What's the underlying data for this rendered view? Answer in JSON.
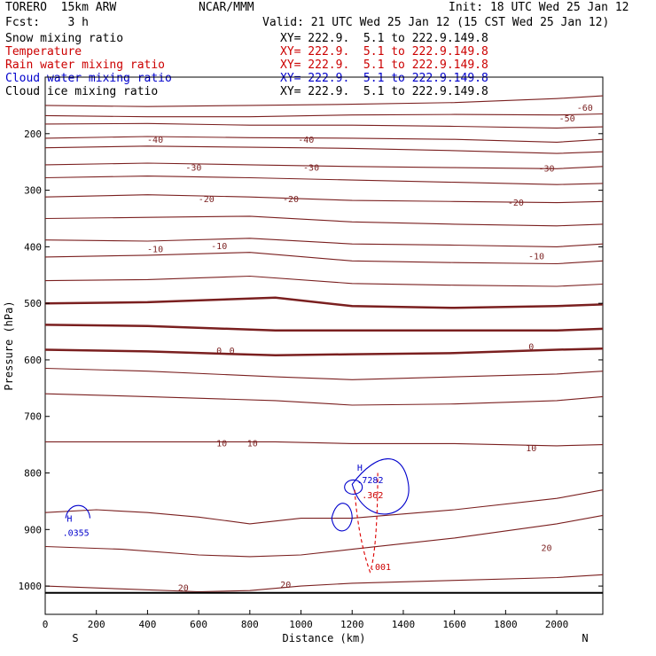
{
  "header": {
    "model": "TORERO  15km ARW",
    "org": "NCAR/MMM",
    "init": "Init: 18 UTC Wed 25 Jan 12",
    "fcst": "Fcst:    3 h",
    "valid": "Valid: 21 UTC Wed 25 Jan 12 (15 CST Wed 25 Jan 12)"
  },
  "fields": [
    {
      "name": "Snow mixing ratio",
      "xy": "XY= 222.9.  5.1 to 222.9.149.8",
      "color": "#000000"
    },
    {
      "name": "Temperature",
      "xy": "XY= 222.9.  5.1 to 222.9.149.8",
      "color": "#cc0000"
    },
    {
      "name": "Rain water mixing ratio",
      "xy": "XY= 222.9.  5.1 to 222.9.149.8",
      "color": "#cc0000"
    },
    {
      "name": "Cloud water mixing ratio",
      "xy": "XY= 222.9.  5.1 to 222.9.149.8",
      "color": "#0000cc"
    },
    {
      "name": "Cloud ice mixing ratio",
      "xy": "XY= 222.9.  5.1 to 222.9.149.8",
      "color": "#000000"
    }
  ],
  "chart_data": {
    "type": "line",
    "xlabel": "Distance (km)",
    "ylabel": "Pressure (hPa)",
    "xlim": [
      0,
      2180
    ],
    "ylim": [
      1050,
      100
    ],
    "x_ticks": [
      0,
      200,
      400,
      600,
      800,
      1000,
      1200,
      1400,
      1600,
      1800,
      2000
    ],
    "x_tick_labels": [
      "0",
      "200",
      "400",
      "600",
      "800",
      "1000",
      "1200",
      "1400",
      "1600",
      "1800",
      "2000"
    ],
    "y_ticks": [
      200,
      300,
      400,
      500,
      600,
      700,
      800,
      900,
      1000
    ],
    "y_tick_labels": [
      "200",
      "300",
      "400",
      "500",
      "600",
      "700",
      "800",
      "900",
      "1000"
    ],
    "x_end_labels": {
      "left": "S",
      "right": "N"
    },
    "colors": {
      "temperature": "#7a1f1f",
      "cloud_water": "#0000cc",
      "rain": "#dd0000",
      "ground": "#000000"
    },
    "temperature_isotherms": [
      {
        "level": -60,
        "points": [
          [
            0,
            150
          ],
          [
            400,
            152
          ],
          [
            800,
            150
          ],
          [
            1200,
            148
          ],
          [
            1600,
            145
          ],
          [
            2000,
            138
          ],
          [
            2180,
            133
          ]
        ]
      },
      {
        "level": -50,
        "points": [
          [
            0,
            168
          ],
          [
            400,
            170
          ],
          [
            800,
            170
          ],
          [
            1200,
            167
          ],
          [
            1600,
            166
          ],
          [
            2000,
            167
          ],
          [
            2180,
            165
          ]
        ]
      },
      {
        "level": -40,
        "points": [
          [
            0,
            183
          ],
          [
            400,
            182
          ],
          [
            800,
            185
          ],
          [
            1200,
            185
          ],
          [
            1600,
            187
          ],
          [
            2000,
            190
          ],
          [
            2180,
            188
          ]
        ]
      },
      {
        "level": -40,
        "points": [
          [
            0,
            208
          ],
          [
            400,
            205
          ],
          [
            800,
            207
          ],
          [
            1200,
            208
          ],
          [
            1600,
            210
          ],
          [
            2000,
            215
          ],
          [
            2180,
            210
          ]
        ]
      },
      {
        "level": -30,
        "points": [
          [
            0,
            225
          ],
          [
            400,
            222
          ],
          [
            800,
            224
          ],
          [
            1200,
            226
          ],
          [
            1600,
            230
          ],
          [
            2000,
            235
          ],
          [
            2180,
            232
          ]
        ]
      },
      {
        "level": -30,
        "points": [
          [
            0,
            255
          ],
          [
            400,
            252
          ],
          [
            800,
            255
          ],
          [
            1200,
            258
          ],
          [
            1600,
            260
          ],
          [
            2000,
            262
          ],
          [
            2180,
            258
          ]
        ]
      },
      {
        "level": -20,
        "points": [
          [
            0,
            278
          ],
          [
            400,
            275
          ],
          [
            800,
            278
          ],
          [
            1200,
            282
          ],
          [
            1600,
            286
          ],
          [
            2000,
            290
          ],
          [
            2180,
            288
          ]
        ]
      },
      {
        "level": -20,
        "points": [
          [
            0,
            312
          ],
          [
            400,
            308
          ],
          [
            800,
            312
          ],
          [
            1200,
            318
          ],
          [
            1600,
            320
          ],
          [
            2000,
            322
          ],
          [
            2180,
            320
          ]
        ]
      },
      {
        "level": -10,
        "points": [
          [
            0,
            350
          ],
          [
            400,
            348
          ],
          [
            800,
            346
          ],
          [
            1200,
            356
          ],
          [
            1600,
            360
          ],
          [
            2000,
            363
          ],
          [
            2180,
            360
          ]
        ]
      },
      {
        "level": -10,
        "points": [
          [
            0,
            388
          ],
          [
            400,
            390
          ],
          [
            800,
            385
          ],
          [
            1200,
            395
          ],
          [
            1600,
            397
          ],
          [
            2000,
            400
          ],
          [
            2180,
            395
          ]
        ]
      },
      {
        "level": -10,
        "points": [
          [
            0,
            418
          ],
          [
            400,
            415
          ],
          [
            800,
            410
          ],
          [
            1200,
            425
          ],
          [
            1600,
            428
          ],
          [
            2000,
            430
          ],
          [
            2180,
            425
          ]
        ]
      },
      {
        "level": -10,
        "points": [
          [
            0,
            460
          ],
          [
            400,
            458
          ],
          [
            800,
            452
          ],
          [
            1200,
            465
          ],
          [
            1600,
            468
          ],
          [
            2000,
            470
          ],
          [
            2180,
            466
          ]
        ]
      },
      {
        "level": 0,
        "points": [
          [
            0,
            500
          ],
          [
            400,
            498
          ],
          [
            900,
            490
          ],
          [
            1200,
            505
          ],
          [
            1600,
            508
          ],
          [
            2000,
            505
          ],
          [
            2180,
            502
          ]
        ]
      },
      {
        "level": 0,
        "points": [
          [
            0,
            538
          ],
          [
            400,
            540
          ],
          [
            900,
            548
          ],
          [
            1200,
            548
          ],
          [
            1600,
            548
          ],
          [
            2000,
            548
          ],
          [
            2180,
            545
          ]
        ]
      },
      {
        "level": 0,
        "points": [
          [
            0,
            582
          ],
          [
            400,
            585
          ],
          [
            900,
            592
          ],
          [
            1200,
            590
          ],
          [
            1600,
            588
          ],
          [
            2000,
            582
          ],
          [
            2180,
            580
          ]
        ]
      },
      {
        "level": 10,
        "points": [
          [
            0,
            615
          ],
          [
            400,
            620
          ],
          [
            900,
            630
          ],
          [
            1200,
            635
          ],
          [
            1600,
            630
          ],
          [
            2000,
            625
          ],
          [
            2180,
            620
          ]
        ]
      },
      {
        "level": 10,
        "points": [
          [
            0,
            660
          ],
          [
            400,
            665
          ],
          [
            900,
            672
          ],
          [
            1200,
            680
          ],
          [
            1600,
            678
          ],
          [
            2000,
            672
          ],
          [
            2180,
            665
          ]
        ]
      },
      {
        "level": 10,
        "points": [
          [
            0,
            745
          ],
          [
            400,
            745
          ],
          [
            900,
            745
          ],
          [
            1200,
            748
          ],
          [
            1600,
            748
          ],
          [
            2000,
            752
          ],
          [
            2180,
            750
          ]
        ]
      },
      {
        "level": 20,
        "points": [
          [
            0,
            870
          ],
          [
            200,
            865
          ],
          [
            400,
            870
          ],
          [
            600,
            878
          ],
          [
            800,
            890
          ],
          [
            1000,
            880
          ],
          [
            1200,
            880
          ],
          [
            1600,
            865
          ],
          [
            2000,
            845
          ],
          [
            2180,
            830
          ]
        ]
      },
      {
        "level": 20,
        "points": [
          [
            0,
            930
          ],
          [
            300,
            935
          ],
          [
            600,
            945
          ],
          [
            800,
            948
          ],
          [
            1000,
            945
          ],
          [
            1200,
            935
          ],
          [
            1600,
            915
          ],
          [
            2000,
            890
          ],
          [
            2180,
            875
          ]
        ]
      },
      {
        "level": 20,
        "points": [
          [
            0,
            1000
          ],
          [
            300,
            1005
          ],
          [
            600,
            1010
          ],
          [
            800,
            1008
          ],
          [
            1000,
            1000
          ],
          [
            1200,
            995
          ],
          [
            1600,
            990
          ],
          [
            2000,
            985
          ],
          [
            2180,
            980
          ]
        ]
      }
    ],
    "contour_labels": [
      {
        "text": "-60",
        "x": 2110,
        "y": 153,
        "color": "#7a1f1f"
      },
      {
        "text": "-50",
        "x": 2040,
        "y": 172,
        "color": "#7a1f1f"
      },
      {
        "text": "-40",
        "x": 430,
        "y": 210,
        "color": "#7a1f1f"
      },
      {
        "text": "-40",
        "x": 1020,
        "y": 210,
        "color": "#7a1f1f"
      },
      {
        "text": "-30",
        "x": 580,
        "y": 259,
        "color": "#7a1f1f"
      },
      {
        "text": "-30",
        "x": 1040,
        "y": 259,
        "color": "#7a1f1f"
      },
      {
        "text": "-30",
        "x": 1960,
        "y": 261,
        "color": "#7a1f1f"
      },
      {
        "text": "-20",
        "x": 630,
        "y": 315,
        "color": "#7a1f1f"
      },
      {
        "text": "-20",
        "x": 960,
        "y": 315,
        "color": "#7a1f1f"
      },
      {
        "text": "-20",
        "x": 1840,
        "y": 321,
        "color": "#7a1f1f"
      },
      {
        "text": "-10",
        "x": 430,
        "y": 403,
        "color": "#7a1f1f"
      },
      {
        "text": "-10",
        "x": 680,
        "y": 398,
        "color": "#7a1f1f"
      },
      {
        "text": "-10",
        "x": 1920,
        "y": 416,
        "color": "#7a1f1f"
      },
      {
        "text": "0",
        "x": 680,
        "y": 583,
        "color": "#7a1f1f"
      },
      {
        "text": "0",
        "x": 730,
        "y": 583,
        "color": "#7a1f1f"
      },
      {
        "text": "0",
        "x": 1900,
        "y": 576,
        "color": "#7a1f1f"
      },
      {
        "text": "10",
        "x": 690,
        "y": 747,
        "color": "#7a1f1f"
      },
      {
        "text": "10",
        "x": 810,
        "y": 747,
        "color": "#7a1f1f"
      },
      {
        "text": "10",
        "x": 1900,
        "y": 755,
        "color": "#7a1f1f"
      },
      {
        "text": "20",
        "x": 540,
        "y": 1002,
        "color": "#7a1f1f"
      },
      {
        "text": "20",
        "x": 940,
        "y": 997,
        "color": "#7a1f1f"
      },
      {
        "text": "20",
        "x": 1960,
        "y": 932,
        "color": "#7a1f1f"
      },
      {
        "text": "H",
        "x": 95,
        "y": 880,
        "color": "#0000cc"
      },
      {
        "text": ".0355",
        "x": 120,
        "y": 905,
        "color": "#0000cc"
      },
      {
        "text": "H",
        "x": 1230,
        "y": 790,
        "color": "#0000cc"
      },
      {
        "text": ".7282",
        "x": 1270,
        "y": 812,
        "color": "#0000cc"
      },
      {
        "text": ".362",
        "x": 1280,
        "y": 838,
        "color": "#cc0000"
      },
      {
        "text": ".001",
        "x": 1310,
        "y": 965,
        "color": "#cc0000"
      }
    ],
    "ground_level_hPa": 1012
  }
}
